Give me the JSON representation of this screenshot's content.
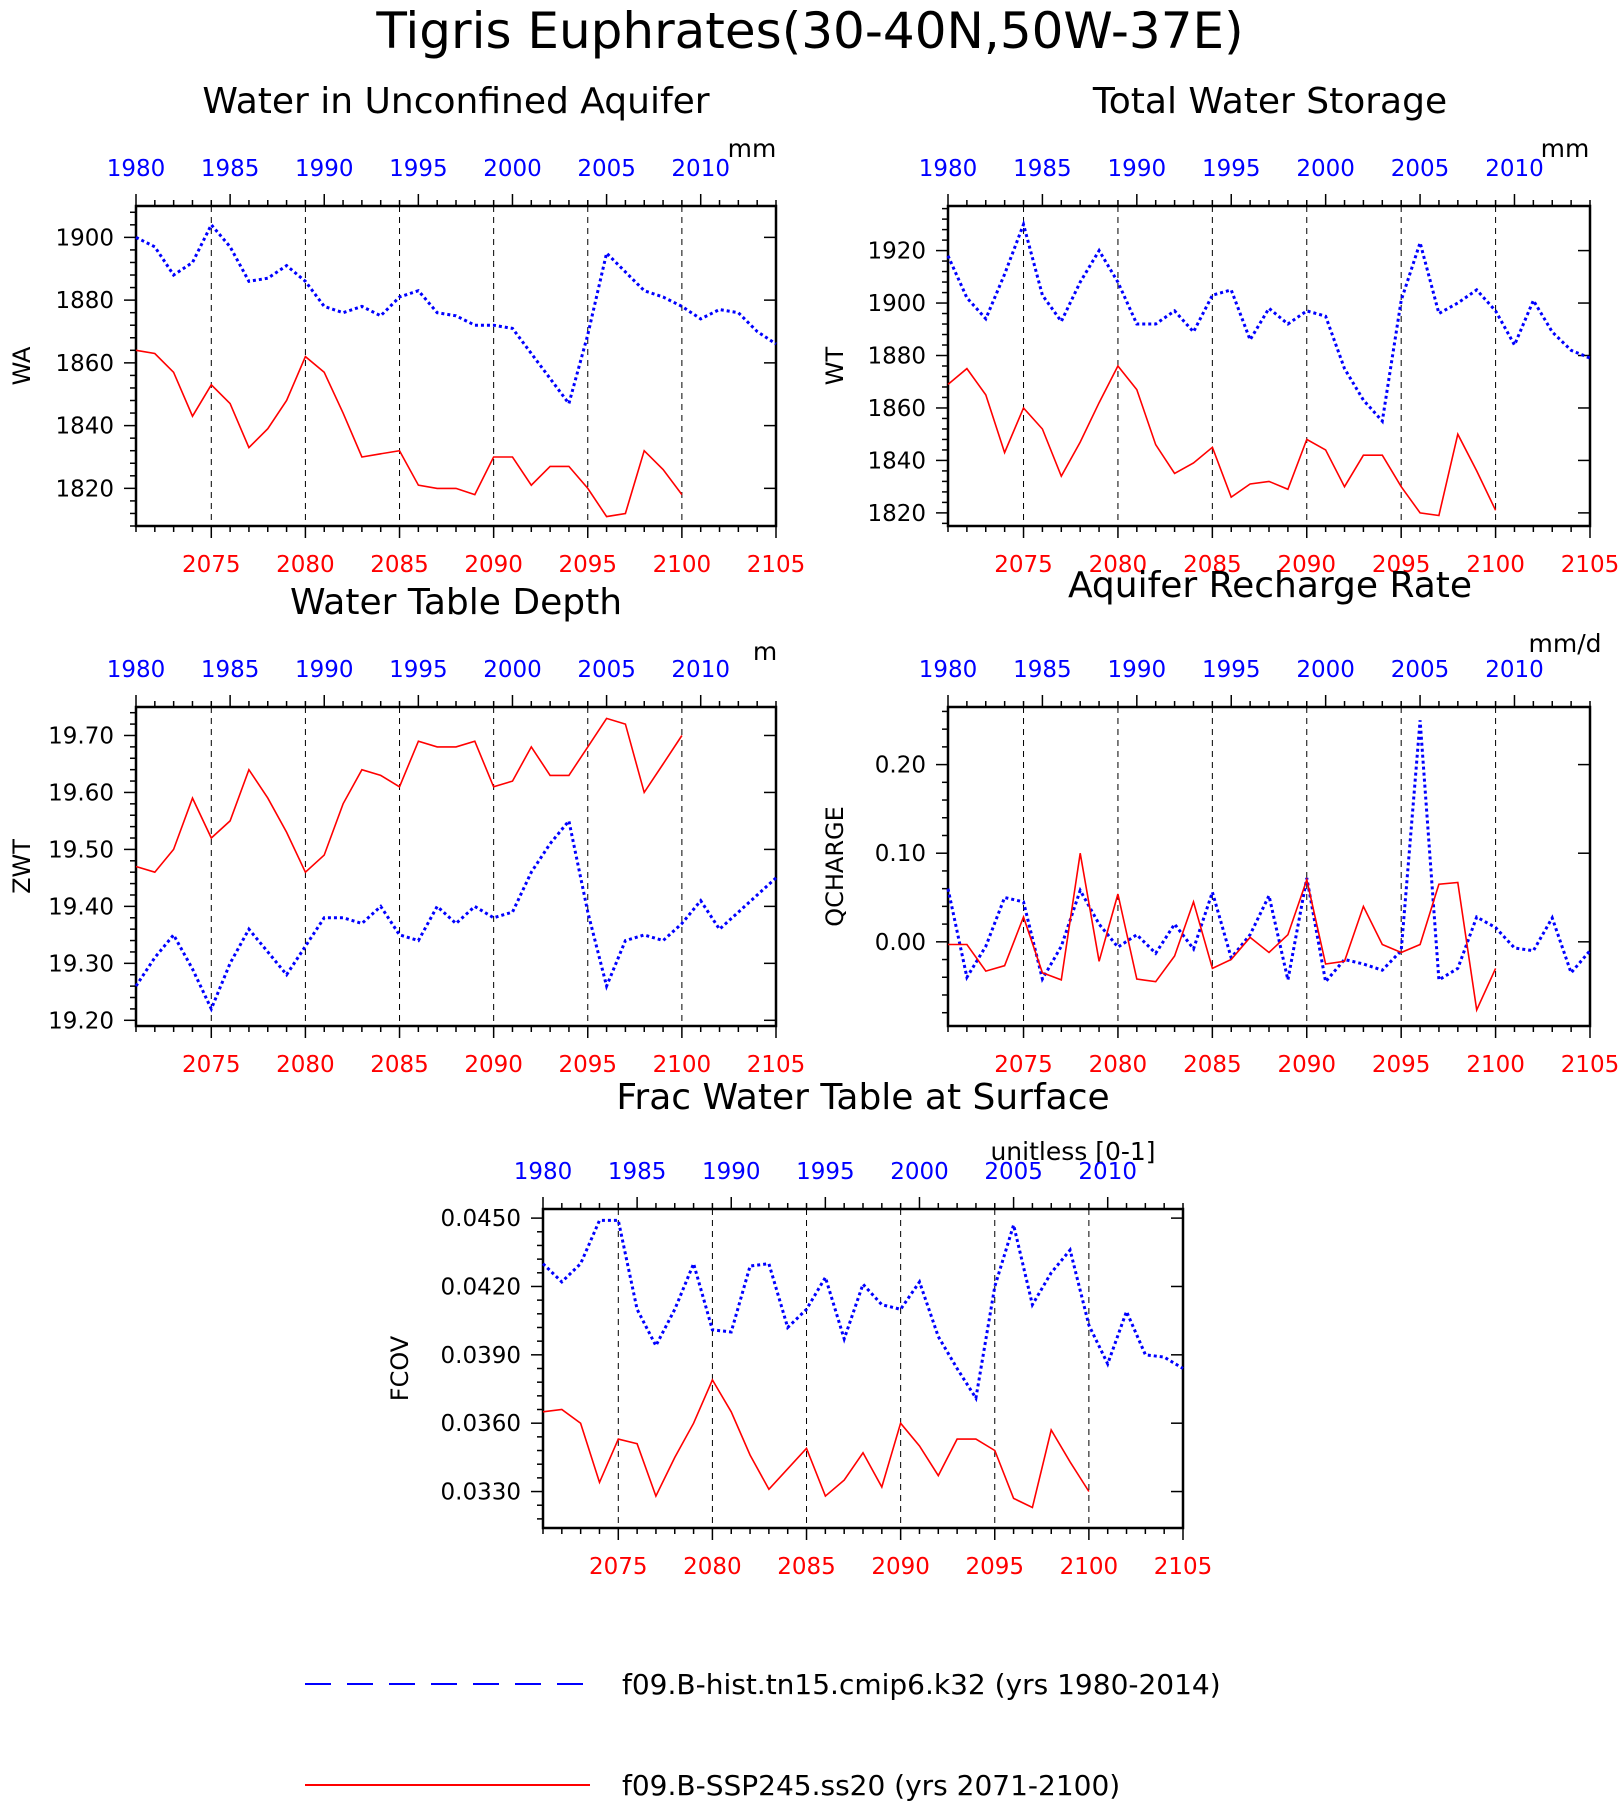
{
  "page": {
    "title": "Tigris Euphrates(30-40N,50W-37E)"
  },
  "colors": {
    "hist": "#0000ff",
    "ssp": "#ff0000",
    "axis": "#000000"
  },
  "legend": {
    "items": [
      {
        "label": "f09.B-hist.tn15.cmip6.k32 (yrs 1980-2014)",
        "color": "#0000ff",
        "style": "dashed"
      },
      {
        "label": "f09.B-SSP245.ss20 (yrs 2071-2100)",
        "color": "#ff0000",
        "style": "solid"
      }
    ]
  },
  "chart_data": [
    {
      "id": "wa",
      "type": "line",
      "title": "Water in Unconfined Aquifer",
      "ylabel": "WA",
      "units": "mm",
      "x_bottom": {
        "range": [
          2071,
          2105
        ],
        "ticks": [
          2075,
          2080,
          2085,
          2090,
          2095,
          2100,
          2105
        ]
      },
      "x_top": {
        "range": [
          1980,
          2014
        ],
        "ticks": [
          1980,
          1985,
          1990,
          1995,
          2000,
          2005,
          2010
        ]
      },
      "ylim": [
        1808,
        1910
      ],
      "yticks": [
        1820,
        1840,
        1860,
        1880,
        1900
      ],
      "vlines": [
        2075,
        2080,
        2085,
        2090,
        2095,
        2100
      ],
      "series": [
        {
          "name": "f09.B-hist.tn15.cmip6.k32",
          "x_start": 1980,
          "values": [
            1900,
            1897,
            1888,
            1892,
            1904,
            1897,
            1886,
            1887,
            1891,
            1886,
            1878,
            1876,
            1878,
            1875,
            1881,
            1883,
            1876,
            1875,
            1872,
            1872,
            1871,
            1863,
            1855,
            1847,
            1869,
            1895,
            1889,
            1883,
            1881,
            1878,
            1874,
            1877,
            1876,
            1870,
            1866
          ]
        },
        {
          "name": "f09.B-SSP245.ss20",
          "x_start": 2071,
          "values": [
            1864,
            1863,
            1857,
            1843,
            1853,
            1847,
            1833,
            1839,
            1848,
            1862,
            1857,
            1844,
            1830,
            1831,
            1832,
            1821,
            1820,
            1820,
            1818,
            1830,
            1830,
            1821,
            1827,
            1827,
            1820,
            1811,
            1812,
            1832,
            1826,
            1818
          ]
        }
      ]
    },
    {
      "id": "wt",
      "type": "line",
      "title": "Total Water Storage",
      "ylabel": "WT",
      "units": "mm",
      "x_bottom": {
        "range": [
          2071,
          2105
        ],
        "ticks": [
          2075,
          2080,
          2085,
          2090,
          2095,
          2100,
          2105
        ]
      },
      "x_top": {
        "range": [
          1980,
          2014
        ],
        "ticks": [
          1980,
          1985,
          1990,
          1995,
          2000,
          2005,
          2010
        ]
      },
      "ylim": [
        1815,
        1937
      ],
      "yticks": [
        1820,
        1840,
        1860,
        1880,
        1900,
        1920
      ],
      "vlines": [
        2075,
        2080,
        2085,
        2090,
        2095,
        2100
      ],
      "series": [
        {
          "name": "f09.B-hist.tn15.cmip6.k32",
          "x_start": 1980,
          "values": [
            1918,
            1902,
            1894,
            1911,
            1930,
            1903,
            1893,
            1908,
            1920,
            1908,
            1892,
            1892,
            1897,
            1889,
            1903,
            1905,
            1886,
            1898,
            1892,
            1897,
            1895,
            1875,
            1863,
            1855,
            1901,
            1923,
            1896,
            1900,
            1905,
            1897,
            1884,
            1901,
            1889,
            1882,
            1879
          ]
        },
        {
          "name": "f09.B-SSP245.ss20",
          "x_start": 2071,
          "values": [
            1869,
            1875,
            1865,
            1843,
            1860,
            1852,
            1834,
            1847,
            1862,
            1876,
            1867,
            1846,
            1835,
            1839,
            1845,
            1826,
            1831,
            1832,
            1829,
            1848,
            1844,
            1830,
            1842,
            1842,
            1830,
            1820,
            1819,
            1850,
            1836,
            1821
          ]
        }
      ]
    },
    {
      "id": "zwt",
      "type": "line",
      "title": "Water Table Depth",
      "ylabel": "ZWT",
      "units": "m",
      "x_bottom": {
        "range": [
          2071,
          2105
        ],
        "ticks": [
          2075,
          2080,
          2085,
          2090,
          2095,
          2100,
          2105
        ]
      },
      "x_top": {
        "range": [
          1980,
          2014
        ],
        "ticks": [
          1980,
          1985,
          1990,
          1995,
          2000,
          2005,
          2010
        ]
      },
      "ylim": [
        19.19,
        19.75
      ],
      "yticks": [
        19.2,
        19.3,
        19.4,
        19.5,
        19.6,
        19.7
      ],
      "vlines": [
        2075,
        2080,
        2085,
        2090,
        2095,
        2100
      ],
      "series": [
        {
          "name": "f09.B-hist.tn15.cmip6.k32",
          "x_start": 1980,
          "values": [
            19.26,
            19.31,
            19.35,
            19.29,
            19.22,
            19.3,
            19.36,
            19.32,
            19.28,
            19.33,
            19.38,
            19.38,
            19.37,
            19.4,
            19.35,
            19.34,
            19.4,
            19.37,
            19.4,
            19.38,
            19.39,
            19.46,
            19.51,
            19.55,
            19.39,
            19.26,
            19.34,
            19.35,
            19.34,
            19.37,
            19.41,
            19.36,
            19.39,
            19.42,
            19.45
          ]
        },
        {
          "name": "f09.B-SSP245.ss20",
          "x_start": 2071,
          "values": [
            19.47,
            19.46,
            19.5,
            19.59,
            19.52,
            19.55,
            19.64,
            19.59,
            19.53,
            19.46,
            19.49,
            19.58,
            19.64,
            19.63,
            19.61,
            19.69,
            19.68,
            19.68,
            19.69,
            19.61,
            19.62,
            19.68,
            19.63,
            19.63,
            19.68,
            19.73,
            19.72,
            19.6,
            19.65,
            19.7
          ]
        }
      ]
    },
    {
      "id": "qcharge",
      "type": "line",
      "title": "Aquifer Recharge Rate",
      "ylabel": "QCHARGE",
      "units": "mm/d",
      "x_bottom": {
        "range": [
          2071,
          2105
        ],
        "ticks": [
          2075,
          2080,
          2085,
          2090,
          2095,
          2100,
          2105
        ]
      },
      "x_top": {
        "range": [
          1980,
          2014
        ],
        "ticks": [
          1980,
          1985,
          1990,
          1995,
          2000,
          2005,
          2010
        ]
      },
      "ylim": [
        -0.095,
        0.265
      ],
      "yticks": [
        0.0,
        0.1,
        0.2
      ],
      "vlines": [
        2075,
        2080,
        2085,
        2090,
        2095,
        2100
      ],
      "series": [
        {
          "name": "f09.B-hist.tn15.cmip6.k32",
          "x_start": 1980,
          "values": [
            0.06,
            -0.04,
            -0.005,
            0.05,
            0.045,
            -0.042,
            -0.005,
            0.058,
            0.02,
            -0.006,
            0.008,
            -0.013,
            0.02,
            -0.008,
            0.056,
            -0.018,
            0.008,
            0.052,
            -0.043,
            0.072,
            -0.045,
            -0.02,
            -0.025,
            -0.032,
            -0.01,
            0.25,
            -0.043,
            -0.03,
            0.028,
            0.016,
            -0.007,
            -0.01,
            0.027,
            -0.035,
            -0.01
          ]
        },
        {
          "name": "f09.B-SSP245.ss20",
          "x_start": 2071,
          "values": [
            -0.003,
            -0.003,
            -0.033,
            -0.027,
            0.028,
            -0.035,
            -0.043,
            0.1,
            -0.022,
            0.054,
            -0.042,
            -0.045,
            -0.016,
            0.045,
            -0.03,
            -0.02,
            0.005,
            -0.012,
            0.008,
            0.07,
            -0.025,
            -0.022,
            0.04,
            -0.003,
            -0.012,
            -0.003,
            0.065,
            0.067,
            -0.077,
            -0.03
          ]
        }
      ]
    },
    {
      "id": "fcov",
      "type": "line",
      "title": "Frac Water Table at Surface",
      "ylabel": "FCOV",
      "units": "unitless [0-1]",
      "x_bottom": {
        "range": [
          2071,
          2105
        ],
        "ticks": [
          2075,
          2080,
          2085,
          2090,
          2095,
          2100,
          2105
        ]
      },
      "x_top": {
        "range": [
          1980,
          2014
        ],
        "ticks": [
          1980,
          1985,
          1990,
          1995,
          2000,
          2005,
          2010
        ]
      },
      "ylim": [
        0.0314,
        0.0454
      ],
      "yticks": [
        0.033,
        0.036,
        0.039,
        0.042,
        0.045
      ],
      "vlines": [
        2075,
        2080,
        2085,
        2090,
        2095,
        2100
      ],
      "series": [
        {
          "name": "f09.B-hist.tn15.cmip6.k32",
          "x_start": 1980,
          "values": [
            0.043,
            0.0422,
            0.043,
            0.0449,
            0.0449,
            0.041,
            0.0394,
            0.041,
            0.043,
            0.0401,
            0.04,
            0.0429,
            0.043,
            0.0402,
            0.041,
            0.0424,
            0.0397,
            0.0421,
            0.0412,
            0.041,
            0.0422,
            0.0398,
            0.0384,
            0.0371,
            0.042,
            0.0447,
            0.0412,
            0.0426,
            0.0436,
            0.0403,
            0.0386,
            0.0409,
            0.039,
            0.0389,
            0.0384
          ]
        },
        {
          "name": "f09.B-SSP245.ss20",
          "x_start": 2071,
          "values": [
            0.0365,
            0.0366,
            0.036,
            0.0334,
            0.0353,
            0.0351,
            0.0328,
            0.0345,
            0.036,
            0.0379,
            0.0365,
            0.0346,
            0.0331,
            0.034,
            0.0349,
            0.0328,
            0.0335,
            0.0347,
            0.0332,
            0.036,
            0.035,
            0.0337,
            0.0353,
            0.0353,
            0.0348,
            0.0327,
            0.0323,
            0.0357,
            0.0343,
            0.033
          ]
        }
      ]
    }
  ]
}
